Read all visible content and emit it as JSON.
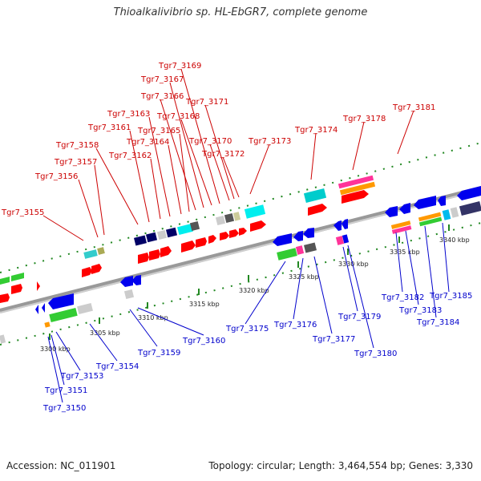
{
  "header": {
    "title": "Thioalkalivibrio sp. HL-EbGR7, complete genome"
  },
  "footer": {
    "accession": "Accession: NC_011901",
    "summary": "Topology: circular; Length: 3,464,554 bp; Genes: 3,330"
  },
  "colors": {
    "top_strand_label": "#cc0000",
    "bottom_strand_label": "#0000cc",
    "backbone": "#999999"
  },
  "scale": {
    "ticks": [
      {
        "label": "3300 kbp"
      },
      {
        "label": "3305 kbp"
      },
      {
        "label": "3310 kbp"
      },
      {
        "label": "3315 kbp"
      },
      {
        "label": "3320 kbp"
      },
      {
        "label": "3325 kbp"
      },
      {
        "label": "3330 kbp"
      },
      {
        "label": "3335 kbp"
      },
      {
        "label": "3340 kbp"
      }
    ]
  },
  "genes_top": [
    {
      "label": "Tgr7_3155"
    },
    {
      "label": "Tgr7_3156"
    },
    {
      "label": "Tgr7_3157"
    },
    {
      "label": "Tgr7_3158"
    },
    {
      "label": "Tgr7_3161"
    },
    {
      "label": "Tgr7_3162"
    },
    {
      "label": "Tgr7_3163"
    },
    {
      "label": "Tgr7_3164"
    },
    {
      "label": "Tgr7_3165"
    },
    {
      "label": "Tgr7_3166"
    },
    {
      "label": "Tgr7_3167"
    },
    {
      "label": "Tgr7_3168"
    },
    {
      "label": "Tgr7_3169"
    },
    {
      "label": "Tgr7_3170"
    },
    {
      "label": "Tgr7_3171"
    },
    {
      "label": "Tgr7_3172"
    },
    {
      "label": "Tgr7_3173"
    },
    {
      "label": "Tgr7_3174"
    },
    {
      "label": "Tgr7_3178"
    },
    {
      "label": "Tgr7_3181"
    }
  ],
  "genes_bottom": [
    {
      "label": "Tgr7_3150"
    },
    {
      "label": "Tgr7_3151"
    },
    {
      "label": "Tgr7_3153"
    },
    {
      "label": "Tgr7_3154"
    },
    {
      "label": "Tgr7_3159"
    },
    {
      "label": "Tgr7_3160"
    },
    {
      "label": "Tgr7_3175"
    },
    {
      "label": "Tgr7_3176"
    },
    {
      "label": "Tgr7_3177"
    },
    {
      "label": "Tgr7_3179"
    },
    {
      "label": "Tgr7_3180"
    },
    {
      "label": "Tgr7_3182"
    },
    {
      "label": "Tgr7_3183"
    },
    {
      "label": "Tgr7_3184"
    },
    {
      "label": "Tgr7_3185"
    }
  ]
}
